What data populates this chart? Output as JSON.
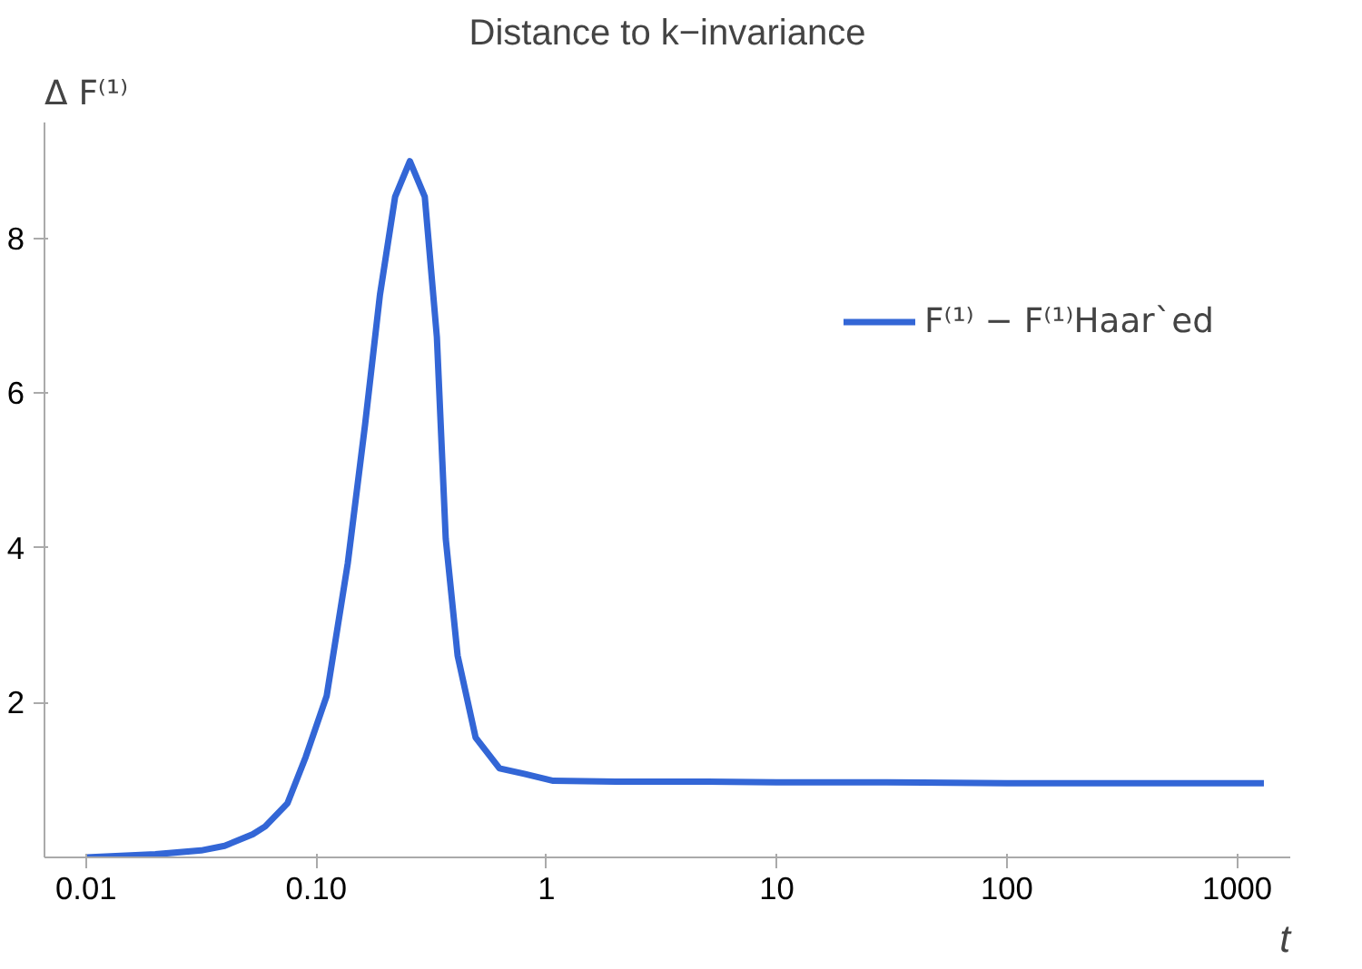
{
  "chart_data": {
    "type": "line",
    "title": "Distance to k−invariance",
    "xlabel": "t",
    "ylabel": "Δ F⁽¹⁾",
    "log": "x",
    "grid": false,
    "legend": "top right",
    "xlim": [
      0.0066,
      1700
    ],
    "ylim": [
      0,
      9.5
    ],
    "xticks": [
      0.01,
      {
        "value": 0.1,
        "label": "0.10"
      },
      1,
      10,
      100,
      1000
    ],
    "yticks": [
      2,
      4,
      6,
      8
    ],
    "series": [
      {
        "name": "F⁽¹⁾ − F⁽¹⁾Haar`ed",
        "color": "#3366d6",
        "x": [
          0.01,
          0.02,
          0.0316,
          0.04,
          0.053,
          0.06,
          0.075,
          0.09,
          0.111,
          0.137,
          0.163,
          0.189,
          0.22,
          0.255,
          0.296,
          0.334,
          0.365,
          0.411,
          0.492,
          0.625,
          0.8,
          1.07,
          2,
          5,
          10,
          30,
          100,
          300,
          1000,
          1306
        ],
        "values": [
          0.0,
          0.04,
          0.09,
          0.15,
          0.3,
          0.4,
          0.7,
          1.3,
          2.09,
          3.8,
          5.6,
          7.27,
          8.54,
          9.0,
          8.54,
          6.73,
          4.12,
          2.61,
          1.55,
          1.15,
          1.08,
          0.99,
          0.98,
          0.98,
          0.97,
          0.97,
          0.96,
          0.96,
          0.96,
          0.96
        ]
      }
    ]
  }
}
